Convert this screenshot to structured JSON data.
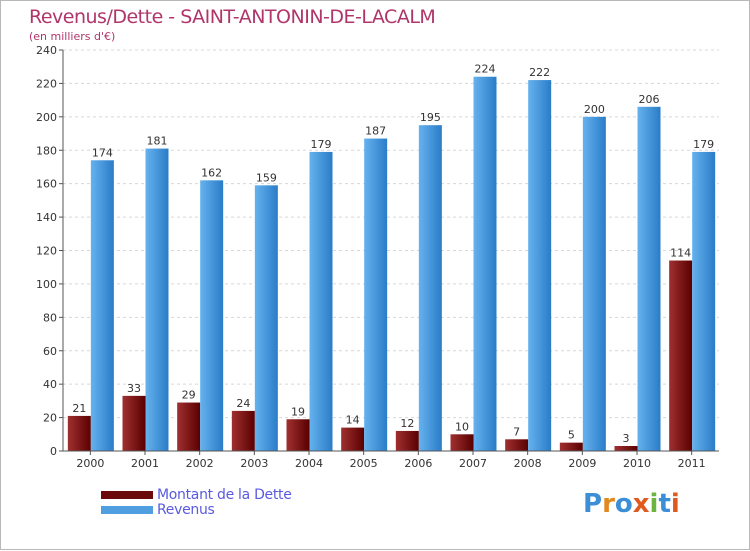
{
  "title": "Revenus/Dette - SAINT-ANTONIN-DE-LACALM",
  "subtitle": "(en milliers d'€)",
  "legend": [
    {
      "label": "Montant de la Dette",
      "color": "#6b0a0a"
    },
    {
      "label": "Revenus",
      "color": "#4f9ee0"
    }
  ],
  "logo": {
    "text": "Proxiti",
    "colors": [
      "#3c8fd6",
      "#e08a1e",
      "#3c8fd6",
      "#e05a1e",
      "#6cb33f",
      "#3c8fd6",
      "#e05a1e"
    ]
  },
  "colors": {
    "debt_dark": "#5a0000",
    "debt_light": "#a03030",
    "rev_dark": "#2a7cc8",
    "rev_light": "#66b2ee",
    "grid": "#d8d8d8",
    "axis_text": "#333333",
    "label_text": "#333333"
  },
  "chart_data": {
    "type": "bar",
    "categories": [
      "2000",
      "2001",
      "2002",
      "2003",
      "2004",
      "2005",
      "2006",
      "2007",
      "2008",
      "2009",
      "2010",
      "2011"
    ],
    "series": [
      {
        "name": "Montant de la Dette",
        "values": [
          21,
          33,
          29,
          24,
          19,
          14,
          12,
          10,
          7,
          5,
          3,
          114
        ]
      },
      {
        "name": "Revenus",
        "values": [
          174,
          181,
          162,
          159,
          179,
          187,
          195,
          224,
          222,
          200,
          206,
          179
        ]
      }
    ],
    "ylim": [
      0,
      240
    ],
    "yticks": [
      0,
      20,
      40,
      60,
      80,
      100,
      120,
      140,
      160,
      180,
      200,
      220,
      240
    ],
    "grid": true,
    "legend_position": "bottom-left",
    "data_labels": true
  }
}
